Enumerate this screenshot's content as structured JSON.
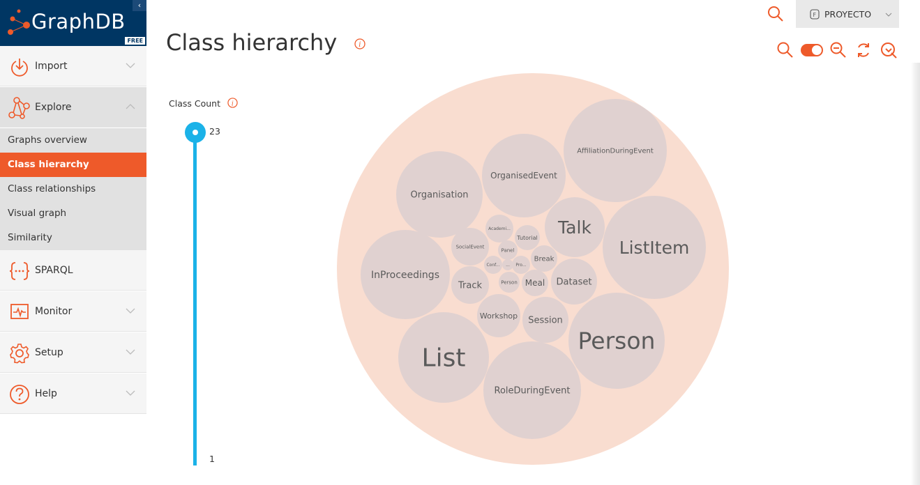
{
  "app": {
    "logo": "GraphDB",
    "edition": "FREE",
    "collapse_glyph": "‹"
  },
  "nav": {
    "import": {
      "label": "Import",
      "icon": "import-icon"
    },
    "explore": {
      "label": "Explore",
      "icon": "explore-icon",
      "submenu": [
        {
          "label": "Graphs overview"
        },
        {
          "label": "Class hierarchy",
          "active": true
        },
        {
          "label": "Class relationships"
        },
        {
          "label": "Visual graph"
        },
        {
          "label": "Similarity"
        }
      ]
    },
    "sparql": {
      "label": "SPARQL",
      "icon": "sparql-icon"
    },
    "monitor": {
      "label": "Monitor",
      "icon": "monitor-icon"
    },
    "setup": {
      "label": "Setup",
      "icon": "gear-icon"
    },
    "help": {
      "label": "Help",
      "icon": "help-icon"
    }
  },
  "header": {
    "repository": "PROYECTO"
  },
  "page": {
    "title": "Class hierarchy"
  },
  "slider": {
    "label": "Class Count",
    "max": "23",
    "min": "1",
    "value": 23
  },
  "colors": {
    "accent": "#ee5a2a",
    "navy": "#003663",
    "slider": "#1bb2e8",
    "outer_bubble": "#f9ddd0",
    "inner_bubble": "#e0d1d0"
  },
  "bubbles": [
    {
      "label": "Organisation",
      "size": 13
    },
    {
      "label": "OrganisedEvent",
      "size": 12
    },
    {
      "label": "AffiliationDuringEvent",
      "size": 10
    },
    {
      "label": "Talk",
      "size": 25
    },
    {
      "label": "ListItem",
      "size": 25
    },
    {
      "label": "InProceedings",
      "size": 14
    },
    {
      "label": "Academi...",
      "size": 6
    },
    {
      "label": "Tutorial",
      "size": 8
    },
    {
      "label": "SocialEvent",
      "size": 7
    },
    {
      "label": "Panel",
      "size": 7
    },
    {
      "label": "Break",
      "size": 10
    },
    {
      "label": "Conf...",
      "size": 6
    },
    {
      "label": "...",
      "size": 6
    },
    {
      "label": "Pro...",
      "size": 6
    },
    {
      "label": "Track",
      "size": 13
    },
    {
      "label": "Person",
      "size": 7
    },
    {
      "label": "Meal",
      "size": 12
    },
    {
      "label": "Dataset",
      "size": 13
    },
    {
      "label": "Workshop",
      "size": 11
    },
    {
      "label": "Session",
      "size": 13
    },
    {
      "label": "Person",
      "size": 33
    },
    {
      "label": "List",
      "size": 36
    },
    {
      "label": "RoleDuringEvent",
      "size": 13
    }
  ]
}
